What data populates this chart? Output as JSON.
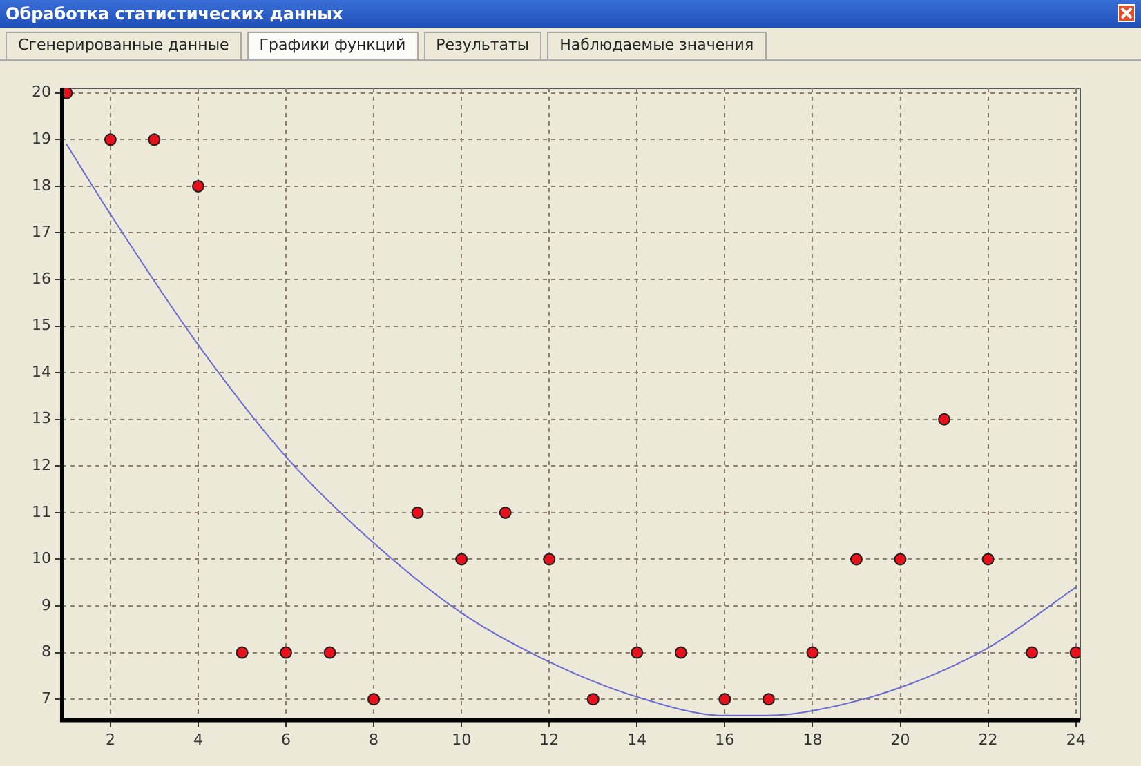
{
  "chart_data": {
    "type": "scatter",
    "title": "Обработка статистических данных",
    "annotations": [
      "Сгенерированные данные",
      "Графики функций",
      "Результаты",
      "Наблюдаемые значения"
    ],
    "x": [
      1,
      2,
      3,
      4,
      5,
      6,
      7,
      8,
      9,
      10,
      11,
      12,
      13,
      14,
      15,
      16,
      17,
      18,
      19,
      20,
      21,
      22,
      23,
      24
    ],
    "series": [
      {
        "color": "#e8101a",
        "marker": "circle",
        "values": [
          20,
          19,
          19,
          18,
          8,
          8,
          8,
          7,
          11,
          10,
          11,
          10,
          7,
          8,
          8,
          7,
          7,
          8,
          10,
          10,
          13,
          10,
          8,
          8
        ]
      },
      {
        "type": "line",
        "color": "#6a6ad0",
        "marker": "none",
        "x": [
          1,
          2,
          4,
          6,
          8,
          10,
          12,
          14,
          16,
          17,
          18,
          20,
          22,
          24
        ],
        "values": [
          18.9,
          17.4,
          14.6,
          12.2,
          10.35,
          8.85,
          7.8,
          7.05,
          6.65,
          6.65,
          6.75,
          7.25,
          8.1,
          9.4
        ]
      }
    ],
    "xlim": [
      0.9,
      24.1
    ],
    "xticks": [
      2,
      4,
      6,
      8,
      10,
      12,
      14,
      16,
      18,
      20,
      22,
      24
    ],
    "ylim": [
      6.55,
      20.1
    ],
    "yticks": [
      7,
      8,
      9,
      10,
      11,
      12,
      13,
      14,
      15,
      16,
      17,
      18,
      19,
      20
    ],
    "grid": true,
    "legend": false
  }
}
